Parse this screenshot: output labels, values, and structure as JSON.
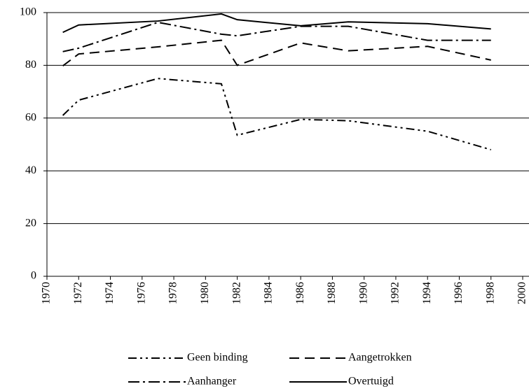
{
  "chart_data": {
    "type": "line",
    "x": [
      1971,
      1972,
      1977,
      1981,
      1982,
      1986,
      1989,
      1994,
      1998
    ],
    "series": [
      {
        "name": "Geen binding",
        "color": "#000000",
        "values": [
          61,
          66.8,
          75,
          73,
          53.5,
          59.5,
          59,
          55,
          48
        ]
      },
      {
        "name": "Aangetrokken",
        "color": "#000000",
        "values": [
          79.8,
          84.3,
          87,
          89.5,
          80,
          88.5,
          85.5,
          87.2,
          82
        ]
      },
      {
        "name": "Aanhanger",
        "color": "#000000",
        "values": [
          85.2,
          86.5,
          96.3,
          91.8,
          91.2,
          94.8,
          94.8,
          89.5,
          89.5
        ]
      },
      {
        "name": "Overtuigd",
        "color": "#000000",
        "values": [
          92.5,
          95.3,
          96.8,
          99.5,
          97.3,
          95,
          96.5,
          95.8,
          93.8
        ]
      }
    ],
    "xlim": [
      1970,
      2000
    ],
    "xticks": [
      1970,
      1972,
      1974,
      1976,
      1978,
      1980,
      1982,
      1984,
      1986,
      1988,
      1990,
      1992,
      1994,
      1996,
      1998,
      2000
    ],
    "ylim": [
      0,
      100
    ],
    "yticks": [
      0,
      20,
      40,
      60,
      80,
      100
    ],
    "grid": true,
    "legend": "bottom"
  }
}
